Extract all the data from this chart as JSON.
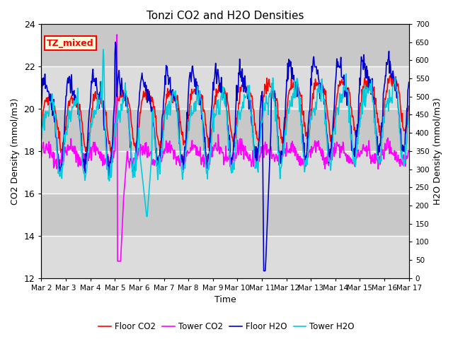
{
  "title": "Tonzi CO2 and H2O Densities",
  "xlabel": "Time",
  "ylabel_left": "CO2 Density (mmol/m3)",
  "ylabel_right": "H2O Density (mmol/m3)",
  "annotation": "TZ_mixed",
  "ylim_left": [
    12,
    24
  ],
  "ylim_right": [
    0,
    700
  ],
  "yticks_left": [
    12,
    14,
    16,
    18,
    20,
    22,
    24
  ],
  "yticks_right": [
    0,
    50,
    100,
    150,
    200,
    250,
    300,
    350,
    400,
    450,
    500,
    550,
    600,
    650,
    700
  ],
  "xtick_labels": [
    "Mar 2",
    "Mar 3",
    "Mar 4",
    "Mar 5",
    "Mar 6",
    "Mar 7",
    "Mar 8",
    "Mar 9",
    "Mar 10",
    "Mar 11",
    "Mar 12",
    "Mar 13",
    "Mar 14",
    "Mar 15",
    "Mar 16",
    "Mar 17"
  ],
  "colors": {
    "floor_co2": "#FF0000",
    "tower_co2": "#FF00FF",
    "floor_h2o": "#0000CC",
    "tower_h2o": "#00CCDD"
  },
  "legend_labels": [
    "Floor CO2",
    "Tower CO2",
    "Floor H2O",
    "Tower H2O"
  ],
  "bg_color": "#DCDCDC",
  "bg_stripe_color": "#C8C8C8",
  "n_points": 720,
  "seed": 42
}
